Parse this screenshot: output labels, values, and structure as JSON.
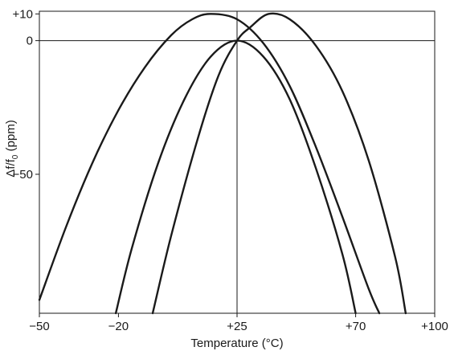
{
  "chart_data": {
    "type": "line",
    "xlabel": "Temperature (°C)",
    "ylabel_main": "Δf/f",
    "ylabel_sub": "0",
    "ylabel_rest": " (ppm)",
    "xlim": [
      -50,
      100
    ],
    "ylim": [
      -102,
      11
    ],
    "x_ticks": [
      {
        "value": -50,
        "label": "−50"
      },
      {
        "value": -20,
        "label": "−20"
      },
      {
        "value": 25,
        "label": "+25"
      },
      {
        "value": 70,
        "label": "+70"
      },
      {
        "value": 100,
        "label": "+100"
      }
    ],
    "y_ticks": [
      {
        "value": 10,
        "label": "+10"
      },
      {
        "value": 0,
        "label": "0"
      },
      {
        "value": -50,
        "label": "−50"
      }
    ],
    "reference_lines": {
      "x": 25,
      "y": 0
    },
    "grid": false,
    "series": [
      {
        "points": [
          [
            -50,
            -97
          ],
          [
            -40,
            -70
          ],
          [
            -30,
            -46
          ],
          [
            -20,
            -26
          ],
          [
            -10,
            -10
          ],
          [
            0,
            2
          ],
          [
            8,
            8
          ],
          [
            15,
            10
          ],
          [
            25,
            8
          ],
          [
            35,
            -1
          ],
          [
            45,
            -17
          ],
          [
            55,
            -40
          ],
          [
            65,
            -66
          ],
          [
            75,
            -93
          ],
          [
            79,
            -102
          ]
        ]
      },
      {
        "points": [
          [
            -21,
            -102
          ],
          [
            -15,
            -78
          ],
          [
            -5,
            -46
          ],
          [
            5,
            -22
          ],
          [
            15,
            -6
          ],
          [
            25,
            0
          ],
          [
            35,
            -6
          ],
          [
            45,
            -22
          ],
          [
            55,
            -48
          ],
          [
            65,
            -80
          ],
          [
            70,
            -102
          ]
        ]
      },
      {
        "points": [
          [
            -7,
            -102
          ],
          [
            0,
            -73
          ],
          [
            10,
            -37
          ],
          [
            18,
            -13
          ],
          [
            25,
            0
          ],
          [
            30,
            5
          ],
          [
            37,
            10
          ],
          [
            45,
            8
          ],
          [
            55,
            -2
          ],
          [
            65,
            -19
          ],
          [
            75,
            -45
          ],
          [
            85,
            -81
          ],
          [
            89,
            -102
          ]
        ]
      }
    ]
  }
}
